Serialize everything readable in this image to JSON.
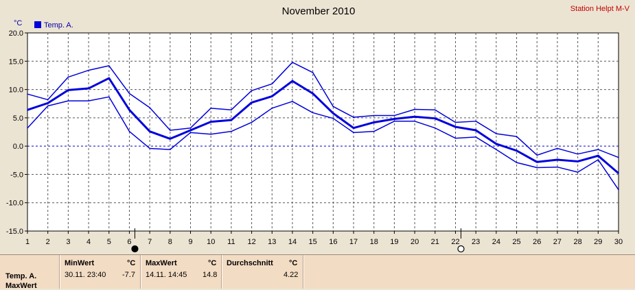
{
  "header": {
    "title": "November 2010",
    "station": "Station Helpt M-V"
  },
  "colors": {
    "series": "#0000dd",
    "zero_line": "#0000cc",
    "grid": "#555555",
    "plot_bg": "#ffffff",
    "page_bg": "#ece4d3",
    "station_text": "#c00000",
    "stats_bg": "#f3dcc4"
  },
  "markers": {
    "full_moon_icon": "filled-circle-icon",
    "new_moon_icon": "open-circle-icon"
  },
  "chart_data": {
    "type": "line",
    "unit": "°C",
    "legend": [
      "Temp. A."
    ],
    "legend_position": "top-left",
    "grid": true,
    "x": [
      1,
      2,
      3,
      4,
      5,
      6,
      7,
      8,
      9,
      10,
      11,
      12,
      13,
      14,
      15,
      16,
      17,
      18,
      19,
      20,
      21,
      22,
      23,
      24,
      25,
      26,
      27,
      28,
      29,
      30
    ],
    "xlim": [
      1,
      30
    ],
    "ylim": [
      -15,
      20
    ],
    "yticks": [
      "20.0",
      "15.0",
      "10.0",
      "5.0",
      "0.0",
      "-5.0",
      "-10.0",
      "-15.0"
    ],
    "series": [
      {
        "name": "Temp. A.",
        "values": [
          9.2,
          8.2,
          12.2,
          13.4,
          14.2,
          9.3,
          6.8,
          2.8,
          3.2,
          6.7,
          6.4,
          9.8,
          11.0,
          14.8,
          13.0,
          7.0,
          5.1,
          5.4,
          5.4,
          6.5,
          6.4,
          4.2,
          4.4,
          2.2,
          1.7,
          -1.6,
          -0.4,
          -1.4,
          -0.6,
          -2.0
        ]
      },
      {
        "values": [
          6.4,
          7.6,
          9.9,
          10.2,
          12.0,
          6.4,
          2.6,
          1.3,
          2.8,
          4.3,
          4.6,
          7.7,
          8.8,
          11.5,
          9.3,
          5.8,
          3.2,
          4.2,
          4.8,
          5.2,
          4.9,
          3.4,
          2.8,
          0.4,
          -0.8,
          -2.8,
          -2.4,
          -2.7,
          -1.7,
          -4.8
        ]
      },
      {
        "values": [
          3.2,
          7.1,
          8.0,
          8.0,
          8.7,
          2.6,
          -0.4,
          -0.6,
          2.4,
          2.1,
          2.6,
          4.2,
          6.7,
          7.9,
          5.9,
          4.9,
          2.4,
          2.6,
          4.4,
          4.4,
          3.2,
          1.4,
          1.6,
          -0.6,
          -2.9,
          -3.8,
          -3.7,
          -4.6,
          -2.4,
          -7.7
        ]
      }
    ],
    "annotations": [
      {
        "type": "full-moon",
        "x": 6
      },
      {
        "type": "new-moon",
        "x": 22
      }
    ]
  },
  "stats": {
    "row_label": "Temp. A.",
    "row_label_2": "MaxWert",
    "min": {
      "header": "MinWert",
      "unit": "°C",
      "datetime": "30.11.  23:40",
      "value": "-7.7"
    },
    "max": {
      "header": "MaxWert",
      "unit": "°C",
      "datetime": "14.11.  14:45",
      "value": "14.8"
    },
    "avg": {
      "header": "Durchschnitt",
      "unit": "°C",
      "value": "4.22"
    }
  }
}
